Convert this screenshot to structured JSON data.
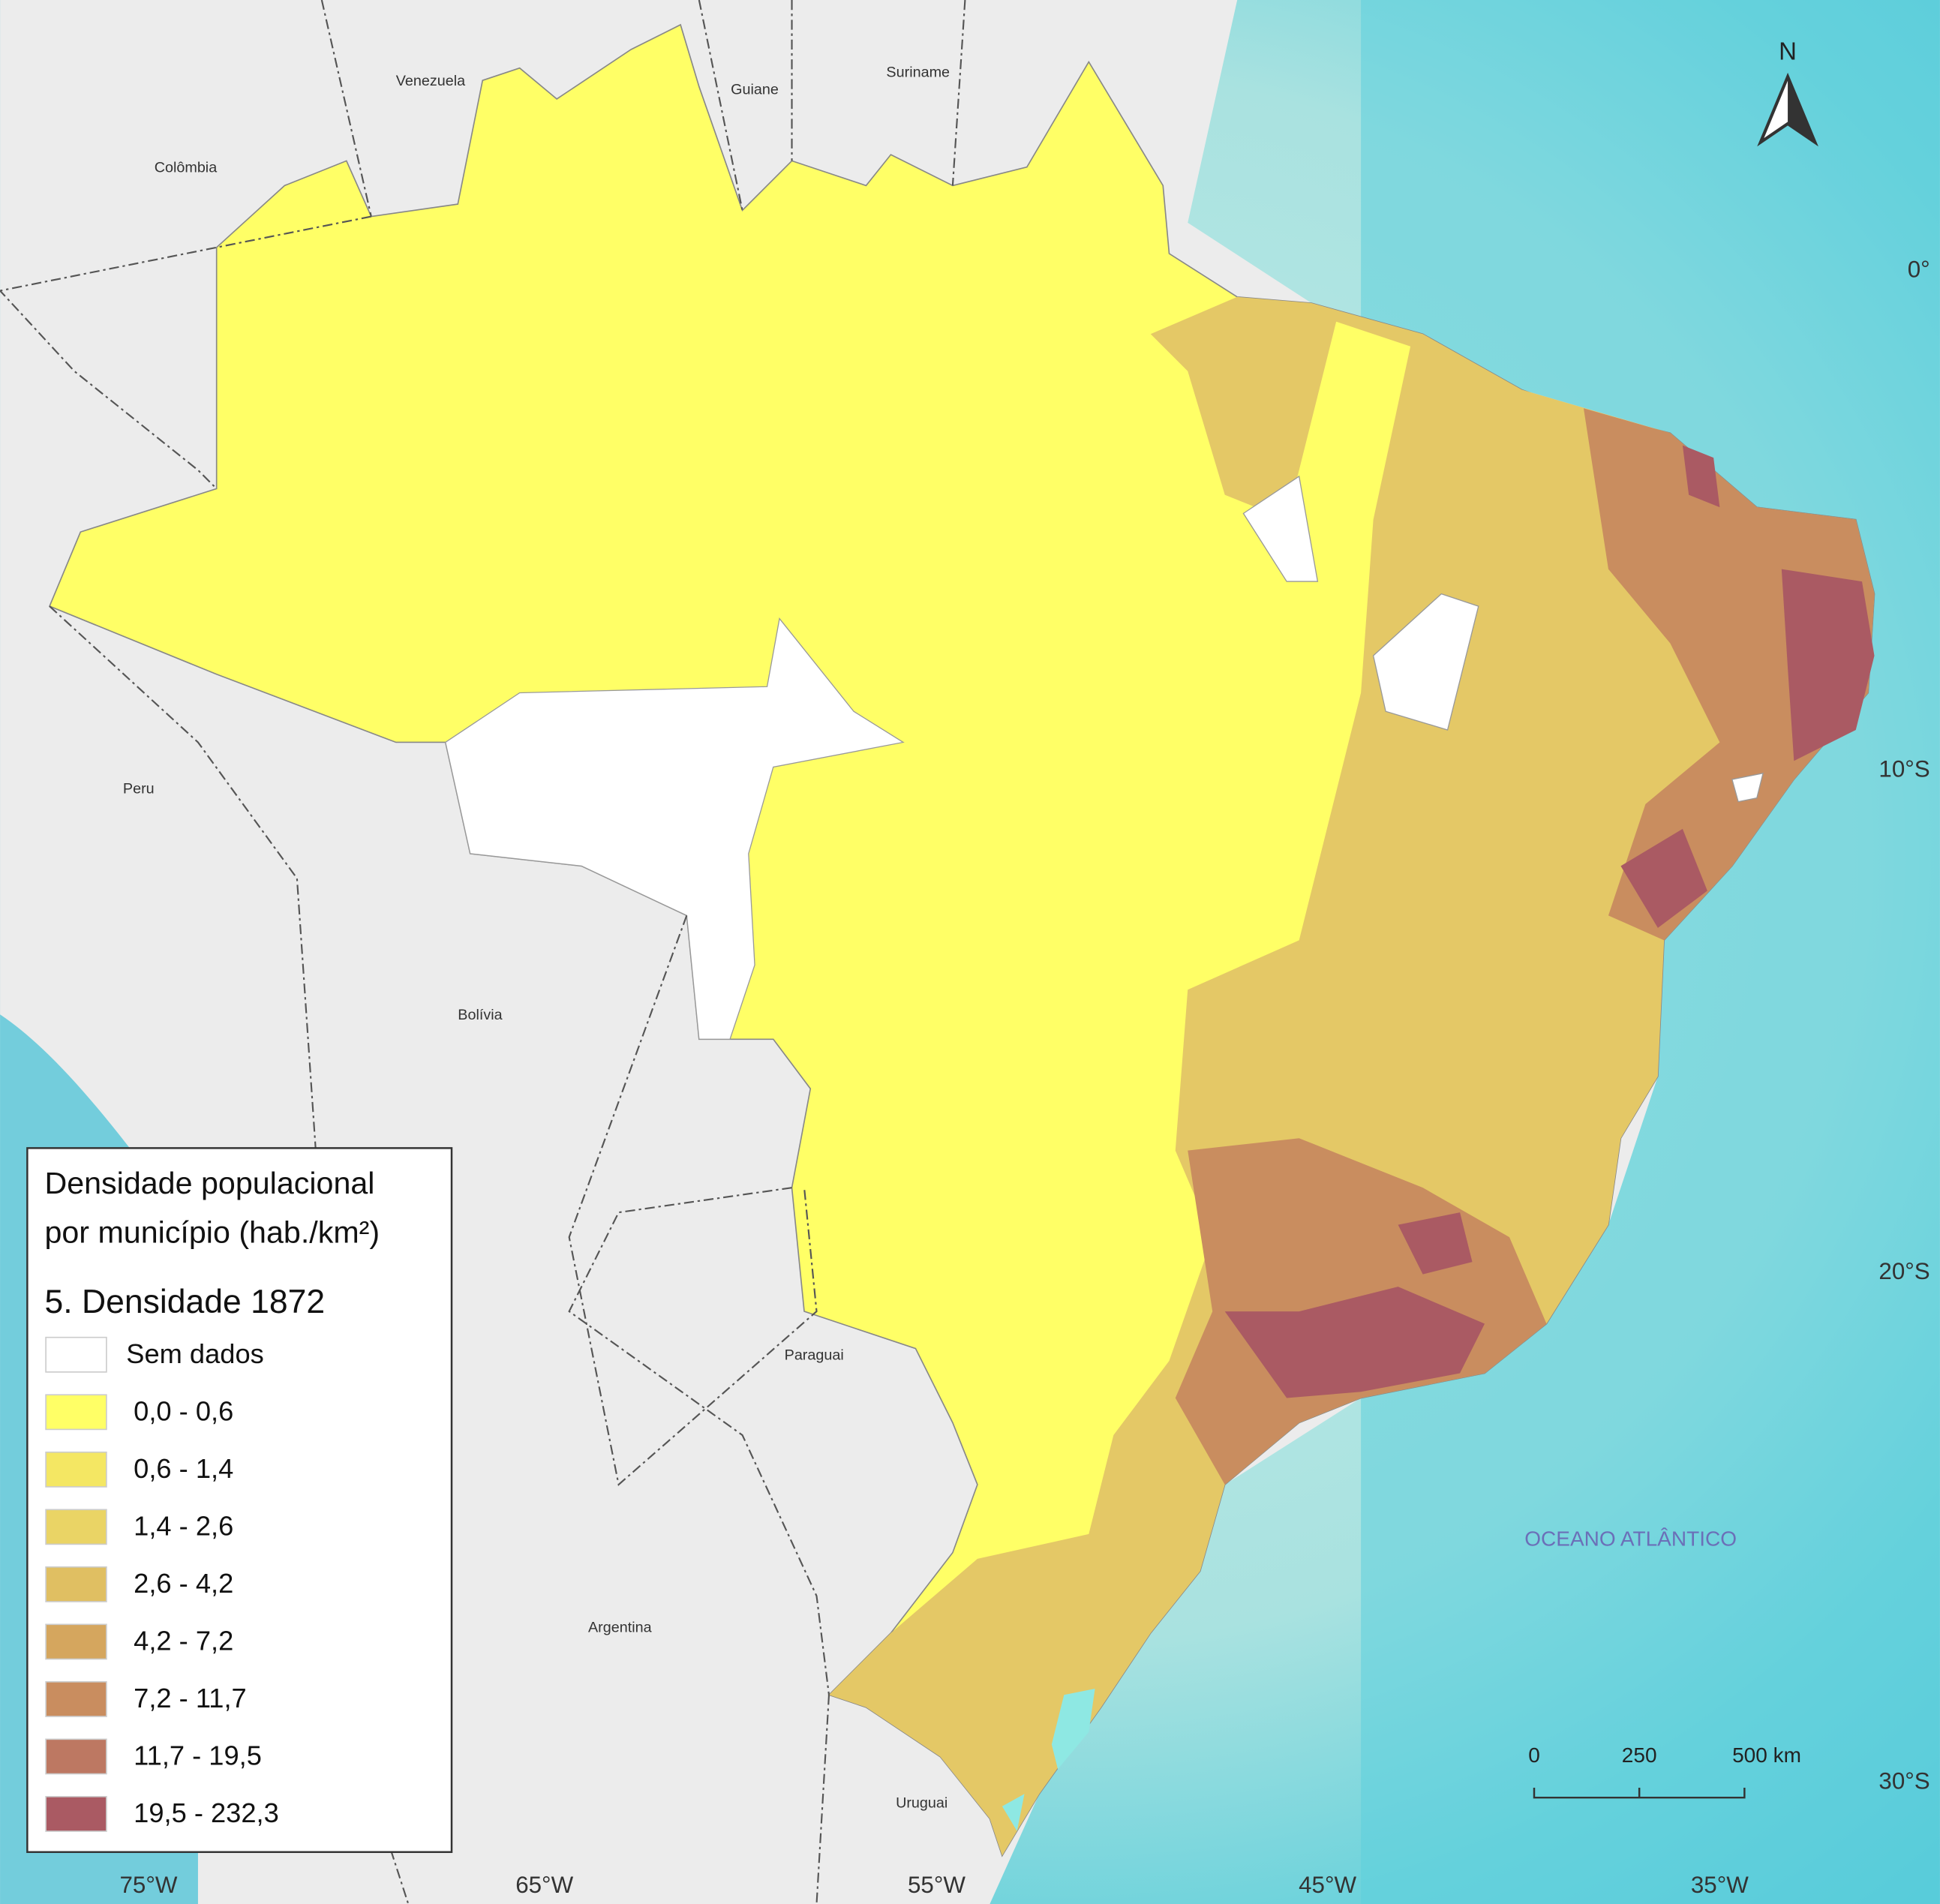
{
  "map": {
    "countries": [
      "Venezuela",
      "Guiane",
      "Suriname",
      "Colômbia",
      "Peru",
      "Bolívia",
      "Paraguai",
      "Argentina",
      "Uruguai"
    ],
    "ocean": "OCEANO ATLÂNTICO",
    "north": "N",
    "longitudes": [
      "75°W",
      "65°W",
      "55°W",
      "45°W",
      "35°W"
    ],
    "latitudes": [
      "0°",
      "10°S",
      "20°S",
      "30°S"
    ],
    "scale": [
      "0",
      "250",
      "500 km"
    ]
  },
  "legend": {
    "title": [
      "Densidade populacional",
      "por município (hab./km²)"
    ],
    "subtitle": "5. Densidade 1872",
    "items": [
      {
        "label": "Sem dados",
        "color": "#ffffff"
      },
      {
        "label": "0,0 - 0,6",
        "color": "#ffff66"
      },
      {
        "label": "0,6 - 1,4",
        "color": "#f4e763"
      },
      {
        "label": "1,4 - 2,6",
        "color": "#ead465"
      },
      {
        "label": "2,6 - 4,2",
        "color": "#e0bf62"
      },
      {
        "label": "4,2 - 7,2",
        "color": "#d5a65e"
      },
      {
        "label": "7,2 - 11,7",
        "color": "#c98d5f"
      },
      {
        "label": "11,7 - 19,5",
        "color": "#bd7862"
      },
      {
        "label": "19,5 - 232,3",
        "color": "#aa5a63"
      }
    ]
  }
}
